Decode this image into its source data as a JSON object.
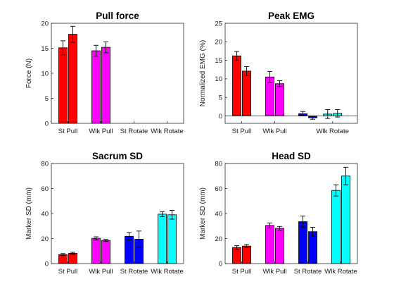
{
  "chart_data": [
    {
      "type": "bar",
      "title": "Pull force",
      "ylabel": "Force (N)",
      "ylim": [
        0,
        20
      ],
      "yticks": [
        0,
        5,
        10,
        15,
        20
      ],
      "categories": [
        "St Pull",
        "Wlk Pull",
        "St Rotate",
        "Wlk Rotate"
      ],
      "colors": [
        "#ff0000",
        "#ff00ff",
        "#0000ff",
        "#00ffff"
      ],
      "series": [
        {
          "values": [
            15.1,
            14.5,
            null,
            null
          ],
          "errors": [
            1.4,
            1.1,
            null,
            null
          ]
        },
        {
          "values": [
            17.8,
            15.2,
            null,
            null
          ],
          "errors": [
            1.6,
            1.1,
            null,
            null
          ]
        }
      ]
    },
    {
      "type": "bar",
      "title": "Peak EMG",
      "ylabel": "Normalized EMG (%)",
      "ylim": [
        -2,
        25
      ],
      "yticks": [
        0,
        5,
        10,
        15,
        20,
        25
      ],
      "categories": [
        "St Pull",
        "Wlk Pull",
        "Wlk Rotate"
      ],
      "category_slots": [
        0,
        1,
        2.75
      ],
      "colors": [
        "#ff0000",
        "#ff00ff",
        "#0000ff",
        "#00ffff"
      ],
      "extra_bars": [
        {
          "slot": 2,
          "color": "#0000ff",
          "values": [
            0.6,
            -0.5
          ],
          "errors": [
            0.6,
            0.4
          ]
        }
      ],
      "series": [
        {
          "values": [
            16.2,
            10.5,
            0.5
          ],
          "errors": [
            1.2,
            1.5,
            1.2
          ]
        },
        {
          "values": [
            12.1,
            8.7,
            0.7
          ],
          "errors": [
            1.2,
            0.8,
            1.0
          ]
        }
      ]
    },
    {
      "type": "bar",
      "title": "Sacrum SD",
      "ylabel": "Marker SD (mm)",
      "ylim": [
        0,
        80
      ],
      "yticks": [
        0,
        20,
        40,
        60,
        80
      ],
      "categories": [
        "St Pull",
        "Wlk Pull",
        "St Rotate",
        "Wlk Rotate"
      ],
      "colors": [
        "#ff0000",
        "#ff00ff",
        "#0000ff",
        "#00ffff"
      ],
      "series": [
        {
          "values": [
            7.2,
            20.2,
            21.8,
            39.5
          ],
          "errors": [
            0.8,
            1.2,
            3.0,
            2.0
          ]
        },
        {
          "values": [
            8.2,
            18.5,
            19.5,
            39.0
          ],
          "errors": [
            0.8,
            0.8,
            6.5,
            3.5
          ]
        }
      ]
    },
    {
      "type": "bar",
      "title": "Head SD",
      "ylabel": "Marker SD (mm)",
      "ylim": [
        0,
        80
      ],
      "yticks": [
        0,
        20,
        40,
        60,
        80
      ],
      "categories": [
        "St Pull",
        "Wlk Pull",
        "St Rotate",
        "Wlk Rotate"
      ],
      "colors": [
        "#ff0000",
        "#ff00ff",
        "#0000ff",
        "#00ffff"
      ],
      "series": [
        {
          "values": [
            12.8,
            30.5,
            33.5,
            58.5
          ],
          "errors": [
            1.5,
            2.0,
            4.5,
            4.5
          ]
        },
        {
          "values": [
            14.0,
            28.2,
            25.5,
            70.0
          ],
          "errors": [
            1.2,
            1.5,
            3.5,
            7.0
          ]
        }
      ]
    }
  ]
}
